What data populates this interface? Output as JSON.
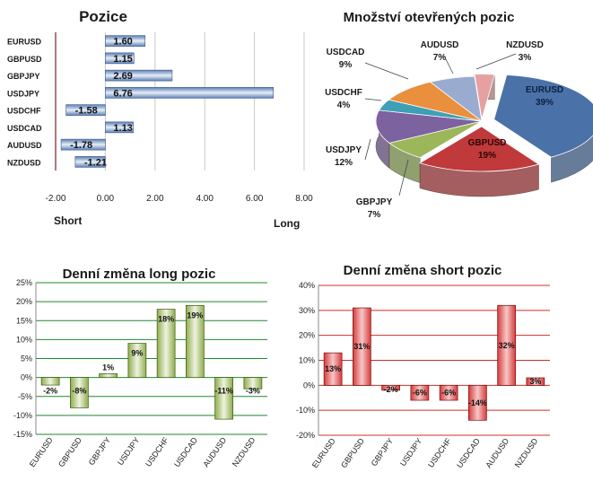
{
  "colors": {
    "blue_bar": "#5b7fb5",
    "green_bar": "#8fad4c",
    "red_bar": "#d93a3a",
    "green_line": "#1e8a2e",
    "red_line": "#c9302c",
    "pie": {
      "EURUSD": "#4a72a8",
      "GBPUSD": "#c0393b",
      "GBPJPY": "#9bb75a",
      "USDJPY": "#7d62a0",
      "USDCHF": "#3e9fb5",
      "USDCAD": "#e98f3d",
      "AUDUSD": "#99acd0",
      "NZDUSD": "#e6a0a0"
    }
  },
  "chart_data": [
    {
      "type": "bar",
      "orientation": "horizontal",
      "title": "Pozice",
      "categories": [
        "EURUSD",
        "GBPUSD",
        "GBPJPY",
        "USDJPY",
        "USDCHF",
        "USDCAD",
        "AUDUSD",
        "NZDUSD"
      ],
      "values": [
        1.6,
        1.15,
        2.69,
        6.76,
        -1.58,
        1.13,
        -1.78,
        -1.21
      ],
      "value_labels": [
        "1.60",
        "1.15",
        "2.69",
        "6.76",
        "-1.58",
        "1.13",
        "-1.78",
        "-1.21"
      ],
      "xlim": [
        -2.0,
        8.0
      ],
      "xticks": [
        "-2.00",
        "0.00",
        "2.00",
        "4.00",
        "6.00",
        "8.00"
      ],
      "xtick_values": [
        -2,
        0,
        2,
        4,
        6,
        8
      ],
      "left_label": "Short",
      "right_label": "Long",
      "grid": true
    },
    {
      "type": "pie",
      "title": "Množství otevřených pozic",
      "labels": [
        "EURUSD",
        "GBPUSD",
        "GBPJPY",
        "USDJPY",
        "USDCHF",
        "USDCAD",
        "AUDUSD",
        "NZDUSD"
      ],
      "values": [
        39,
        19,
        7,
        12,
        4,
        9,
        7,
        3
      ],
      "value_labels": [
        "39%",
        "19%",
        "7%",
        "12%",
        "4%",
        "9%",
        "7%",
        "3%"
      ]
    },
    {
      "type": "bar",
      "title": "Denní změna long pozic",
      "categories": [
        "EURUSD",
        "GBPUSD",
        "GBPJPY",
        "USDJPY",
        "USDCHF",
        "USDCAD",
        "AUDUSD",
        "NZDUSD"
      ],
      "values": [
        -2,
        -8,
        1,
        9,
        18,
        19,
        -11,
        -3
      ],
      "value_labels": [
        "-2%",
        "-8%",
        "1%",
        "9%",
        "18%",
        "19%",
        "-11%",
        "-3%"
      ],
      "ylim": [
        -15,
        25
      ],
      "yticks": [
        "-15%",
        "-10%",
        "-5%",
        "0%",
        "5%",
        "10%",
        "15%",
        "20%",
        "25%"
      ],
      "ytick_values": [
        -15,
        -10,
        -5,
        0,
        5,
        10,
        15,
        20,
        25
      ],
      "grid": true
    },
    {
      "type": "bar",
      "title": "Denní změna short pozic",
      "categories": [
        "EURUSD",
        "GBPUSD",
        "GBPJPY",
        "USDJPY",
        "USDCHF",
        "USDCAD",
        "AUDUSD",
        "NZDUSD"
      ],
      "values": [
        13,
        31,
        -2,
        -6,
        -6,
        -14,
        32,
        3
      ],
      "value_labels": [
        "13%",
        "31%",
        "-2%",
        "-6%",
        "-6%",
        "-14%",
        "32%",
        "3%"
      ],
      "ylim": [
        -20,
        40
      ],
      "yticks": [
        "-20%",
        "-10%",
        "0%",
        "10%",
        "20%",
        "30%",
        "40%"
      ],
      "ytick_values": [
        -20,
        -10,
        0,
        10,
        20,
        30,
        40
      ],
      "grid": true
    }
  ]
}
